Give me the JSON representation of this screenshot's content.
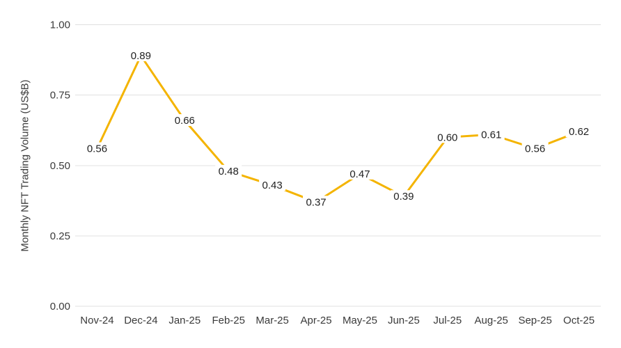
{
  "chart_data": {
    "type": "line",
    "title": "",
    "categories": [
      "Nov-24",
      "Dec-24",
      "Jan-25",
      "Feb-25",
      "Mar-25",
      "Apr-25",
      "May-25",
      "Jun-25",
      "Jul-25",
      "Aug-25",
      "Sep-25",
      "Oct-25"
    ],
    "values": [
      0.56,
      0.89,
      0.66,
      0.48,
      0.43,
      0.37,
      0.47,
      0.39,
      0.6,
      0.61,
      0.56,
      0.62
    ],
    "data_labels": [
      "0.56",
      "0.89",
      "0.66",
      "0.48",
      "0.43",
      "0.37",
      "0.47",
      "0.39",
      "0.60",
      "0.61",
      "0.56",
      "0.62"
    ],
    "xlabel": "",
    "ylabel": "Monthly NFT Trading Volume (US$B)",
    "ylim": [
      0,
      1
    ],
    "yticks": [
      "0.00",
      "0.25",
      "0.50",
      "0.75",
      "1.00"
    ],
    "grid": "horizontal",
    "legend": "none",
    "markers": "none",
    "colors": {
      "line": "#F4B400",
      "grid": "#E0E0E0",
      "axis_text": "#3A3A3A",
      "label_text": "#1F1F1F",
      "background": "#FFFFFF"
    }
  }
}
